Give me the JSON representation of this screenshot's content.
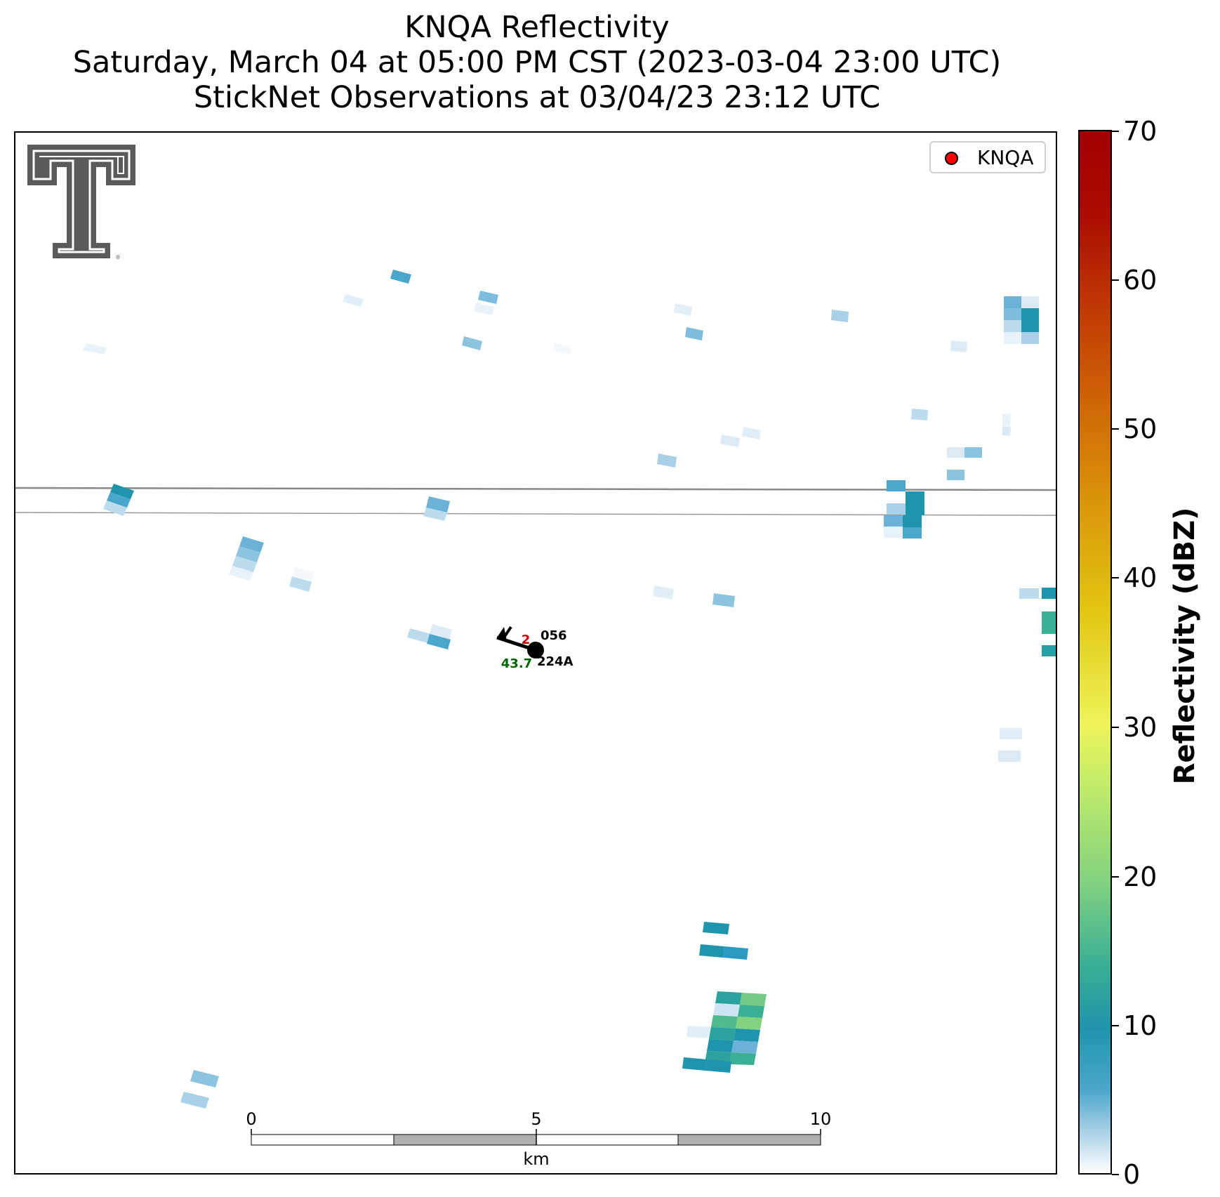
{
  "title": {
    "line1": "KNQA Reflectivity",
    "line2": "Saturday, March 04 at 05:00 PM CST (2023-03-04 23:00 UTC)",
    "line3": "StickNet Observations at 03/04/23 23:12 UTC"
  },
  "legend": {
    "label": "KNQA",
    "marker_color": "#ff0000"
  },
  "station": {
    "id": "224A",
    "temperature": "2",
    "pressure": "056",
    "dewpoint_value": "43.7",
    "temperature_color": "#cc0000",
    "dewpoint_color": "#006400"
  },
  "scalebar": {
    "ticks": [
      "0",
      "5",
      "10"
    ],
    "unit": "km"
  },
  "colorbar": {
    "label": "Reflectivity (dBZ)",
    "ticks": [
      "0",
      "10",
      "20",
      "30",
      "40",
      "50",
      "60",
      "70"
    ]
  },
  "logo": {
    "name": "Texas Tech Double T"
  }
}
